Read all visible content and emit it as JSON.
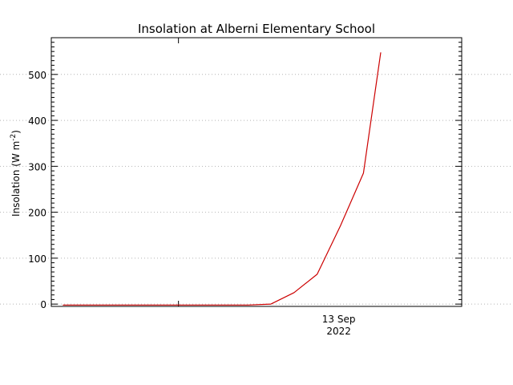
{
  "chart_data": {
    "type": "line",
    "title": "Insolation at Alberni Elementary School",
    "ylabel": {
      "prefix": "Insolation (W m",
      "superscript": "-2",
      "suffix": ")"
    },
    "xlabel": "",
    "x_tick_labels": [
      {
        "x": "2022-09-13T00:00",
        "line1": "13 Sep",
        "line2": "2022"
      }
    ],
    "x_range": [
      "2022-09-12T18:30",
      "2022-09-13T12:15"
    ],
    "ylim": [
      -5,
      580
    ],
    "y_ticks": [
      0,
      100,
      200,
      300,
      400,
      500
    ],
    "grid": "horizontal dotted at major y ticks",
    "legend": "none",
    "series": [
      {
        "color": "#cc0000",
        "points": [
          {
            "x": "2022-09-12T19:00",
            "y": -2
          },
          {
            "x": "2022-09-12T20:00",
            "y": -2
          },
          {
            "x": "2022-09-12T21:00",
            "y": -2
          },
          {
            "x": "2022-09-12T22:00",
            "y": -2
          },
          {
            "x": "2022-09-12T23:00",
            "y": -2
          },
          {
            "x": "2022-09-13T00:00",
            "y": -2
          },
          {
            "x": "2022-09-13T01:00",
            "y": -2
          },
          {
            "x": "2022-09-13T02:00",
            "y": -2
          },
          {
            "x": "2022-09-13T03:00",
            "y": -2
          },
          {
            "x": "2022-09-13T04:00",
            "y": 0
          },
          {
            "x": "2022-09-13T05:00",
            "y": 25
          },
          {
            "x": "2022-09-13T06:00",
            "y": 65
          },
          {
            "x": "2022-09-13T07:00",
            "y": 170
          },
          {
            "x": "2022-09-13T08:00",
            "y": 285
          },
          {
            "x": "2022-09-13T08:45",
            "y": 548
          }
        ]
      }
    ],
    "colors": {
      "axis": "#000000",
      "grid": "#b4b4b4",
      "background": "#ffffff"
    }
  }
}
